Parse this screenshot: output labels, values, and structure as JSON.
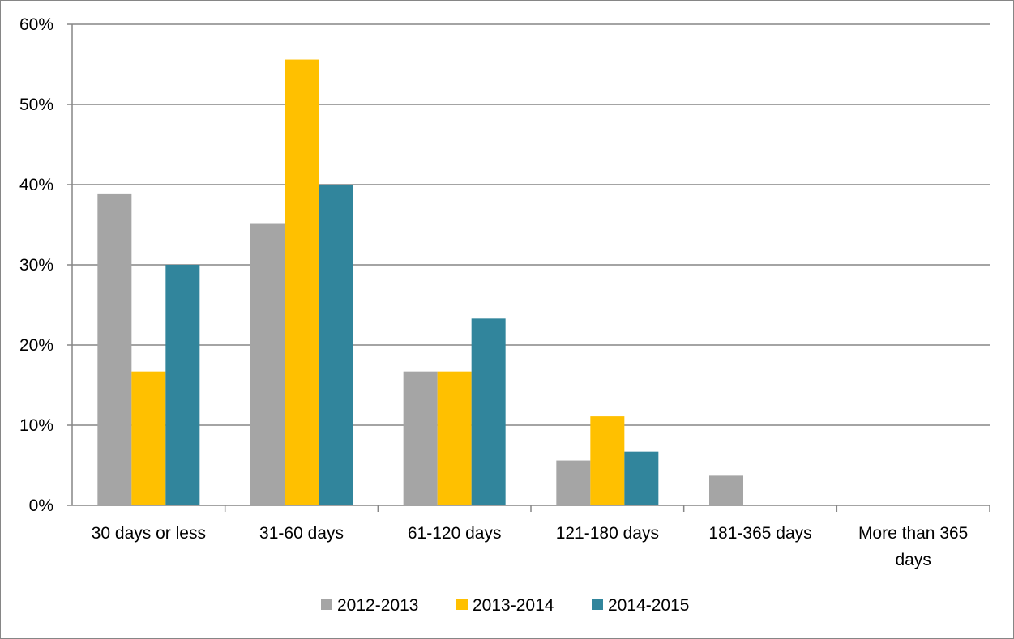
{
  "chart_data": {
    "type": "bar",
    "title": "",
    "xlabel": "",
    "ylabel": "",
    "categories": [
      [
        "30 days or less"
      ],
      [
        "31-60 days"
      ],
      [
        "61-120 days"
      ],
      [
        "121-180 days"
      ],
      [
        "181-365 days"
      ],
      [
        "More than 365",
        "days"
      ]
    ],
    "series": [
      {
        "name": "2012-2013",
        "color": "#A5A5A5",
        "values": [
          38.9,
          35.2,
          16.7,
          5.6,
          3.7,
          0
        ]
      },
      {
        "name": "2013-2014",
        "color": "#FFC000",
        "values": [
          16.7,
          55.6,
          16.7,
          11.1,
          0,
          0
        ]
      },
      {
        "name": "2014-2015",
        "color": "#31859C",
        "values": [
          30.0,
          40.0,
          23.3,
          6.7,
          0,
          0
        ]
      }
    ],
    "ylim": [
      0,
      60
    ],
    "yticks": [
      0,
      10,
      20,
      30,
      40,
      50,
      60
    ],
    "ytick_suffix": "%",
    "gridlines": true,
    "legend_position": "bottom"
  }
}
